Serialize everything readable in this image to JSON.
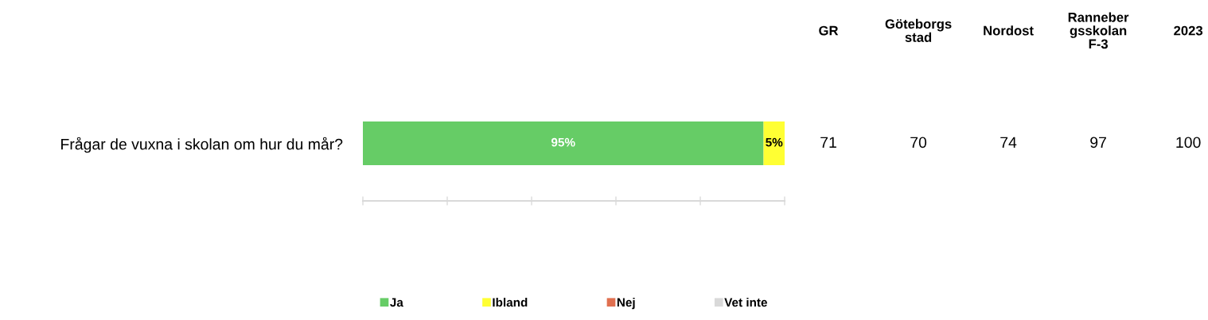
{
  "chart_data": [
    {
      "type": "bar",
      "orientation": "horizontal",
      "stacked": true,
      "categories": [
        "Frågar de vuxna i skolan om hur du mår?"
      ],
      "series": [
        {
          "name": "Ja",
          "color": "#66cc66",
          "values": [
            95
          ],
          "value_labels": [
            "95%"
          ]
        },
        {
          "name": "Ibland",
          "color": "#ffff33",
          "values": [
            5
          ],
          "value_labels": [
            "5%"
          ]
        },
        {
          "name": "Nej",
          "color": "#e07050",
          "values": [
            0
          ],
          "value_labels": [
            null
          ]
        },
        {
          "name": "Vet inte",
          "color": "#d9d9d9",
          "values": [
            0
          ],
          "value_labels": [
            null
          ]
        }
      ],
      "xlim": [
        0,
        100
      ],
      "xticks": [
        {
          "value": 0,
          "label": null
        },
        {
          "value": 20,
          "label": null
        },
        {
          "value": 40,
          "label": null
        },
        {
          "value": 60,
          "label": null
        },
        {
          "value": 80,
          "label": null
        },
        {
          "value": 100,
          "label": null
        }
      ],
      "grid": false,
      "legend": "bottom"
    },
    {
      "type": "other",
      "categories": [
        "GR",
        "Göteborgs\nstad",
        "Nordost",
        "Ranneber\ngsskolan\nF-3",
        "2023"
      ],
      "values": [
        71,
        70,
        74,
        97,
        100
      ],
      "data_labels": true
    }
  ]
}
